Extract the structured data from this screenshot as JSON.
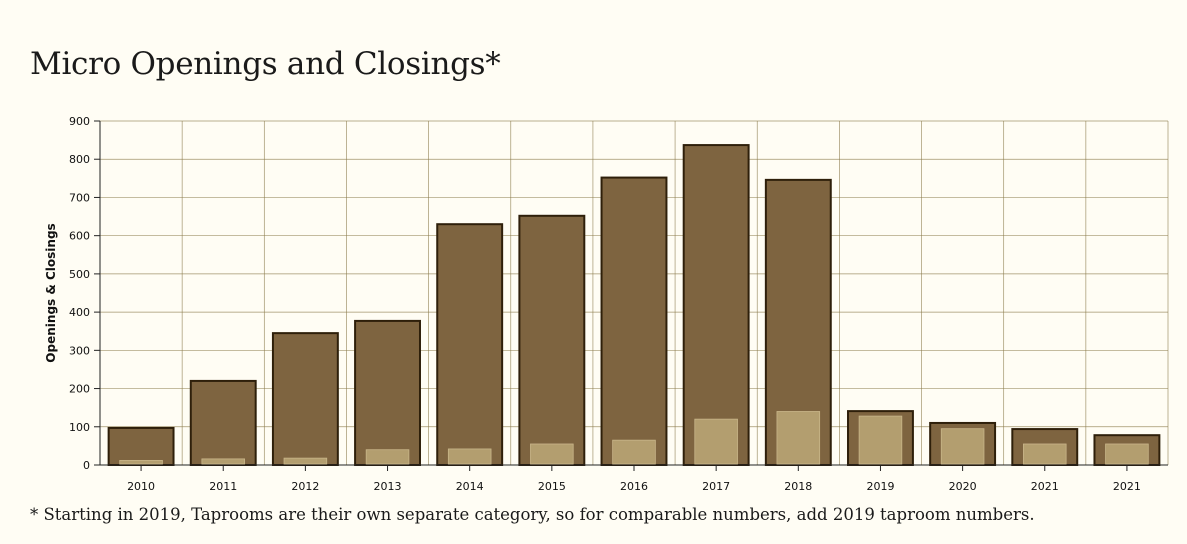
{
  "title": "Micro Openings and Closings*",
  "footnote": "* Starting in 2019, Taprooms are their own separate category, so for comparable numbers, add 2019 taproom numbers.",
  "colors": {
    "background": "#fffdf4",
    "grid": "#8a7a4a",
    "openings_fill": "#7e6440",
    "openings_stroke": "#2e1f0a",
    "closings_fill": "#b39e6f"
  },
  "chart_data": {
    "type": "bar",
    "categories": [
      "2010",
      "2011",
      "2012",
      "2013",
      "2014",
      "2015",
      "2016",
      "2017",
      "2018",
      "2019",
      "2020",
      "2021",
      "2021"
    ],
    "series": [
      {
        "values": [
          97,
          220,
          345,
          377,
          630,
          652,
          752,
          837,
          746,
          141,
          110,
          94,
          78
        ]
      },
      {
        "values": [
          12,
          16,
          18,
          40,
          42,
          55,
          65,
          120,
          140,
          128,
          95,
          55,
          55
        ]
      }
    ],
    "xlabel": "",
    "ylabel": "Openings & Closings",
    "ylim": [
      0,
      900
    ],
    "yticks": [
      0,
      100,
      200,
      300,
      400,
      500,
      600,
      700,
      800,
      900
    ],
    "grid": true
  }
}
